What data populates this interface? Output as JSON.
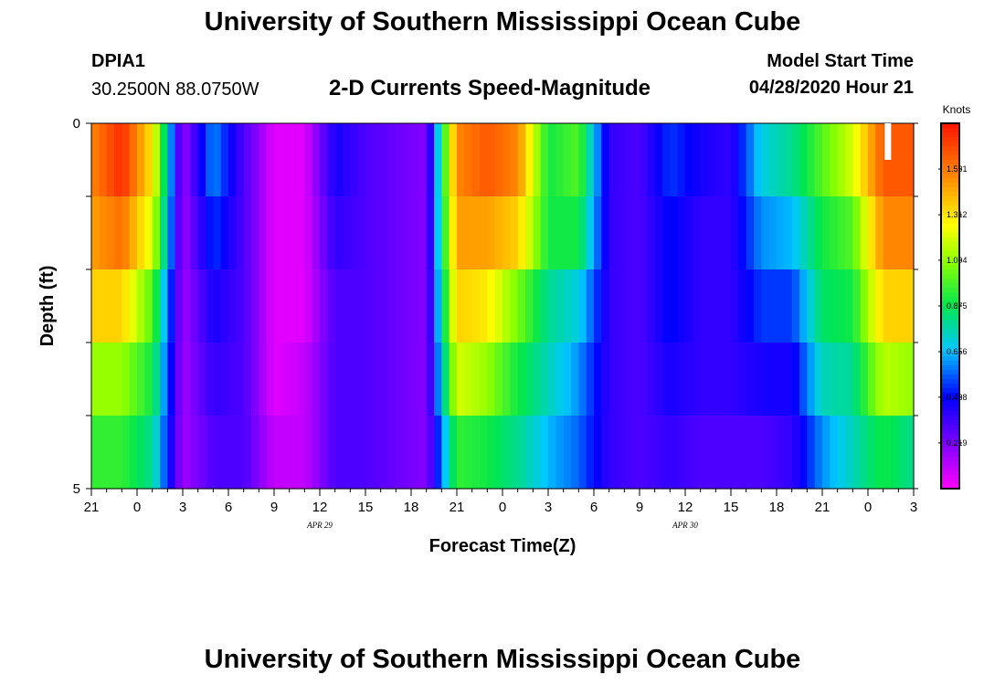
{
  "header": {
    "title": "University of Southern Mississippi Ocean Cube",
    "station_id": "DPIA1",
    "station_coords": "30.2500N 88.0750W",
    "chart_subtitle": "2-D Currents Speed-Magnitude",
    "model_start_label": "Model Start Time",
    "model_start_value": "04/28/2020 Hour 21"
  },
  "footer": {
    "title": "University of Southern Mississippi Ocean Cube"
  },
  "chart_data": {
    "type": "heatmap",
    "title": "2-D Currents Speed-Magnitude",
    "xlabel": "Forecast Time(Z)",
    "ylabel": "Depth (ft)",
    "x_unit": "hours since model start (04/28/2020 21Z)",
    "xlim": [
      0,
      54
    ],
    "ylim": [
      0,
      5
    ],
    "y_inverted": true,
    "y_tick_labels": [
      "0",
      "5"
    ],
    "x_tick_labels": [
      "21",
      "0",
      "3",
      "6",
      "9",
      "12",
      "15",
      "18",
      "21",
      "0",
      "3",
      "6",
      "9",
      "12",
      "15",
      "18",
      "21",
      "0",
      "3"
    ],
    "date_labels": [
      {
        "text": "APR  29",
        "hour": 15
      },
      {
        "text": "APR  30",
        "hour": 39
      }
    ],
    "colorbar": {
      "title": "Knots",
      "ticks": [
        "1.531",
        "1.312",
        "1.094",
        "0.875",
        "0.656",
        "0.438",
        "0.219"
      ],
      "range": [
        0,
        1.75
      ]
    },
    "depth_layers": 5,
    "time_step_hours": 0.5,
    "key_times": [
      0,
      2,
      4,
      6,
      8,
      10,
      12,
      14,
      16,
      18,
      20,
      22,
      24,
      26,
      28,
      30,
      32,
      34,
      36,
      38,
      40,
      42,
      44,
      46,
      48,
      50,
      52,
      54
    ],
    "speed_profiles": [
      [
        1.5,
        1.7,
        1.3,
        0.15,
        0.6,
        0.3,
        0.05,
        0.05,
        0.4,
        0.3,
        0.25,
        0.2,
        1.5,
        1.6,
        1.5,
        0.9,
        1.0,
        0.35,
        0.3,
        0.5,
        0.4,
        0.35,
        0.7,
        0.8,
        1.0,
        1.2,
        1.6,
        1.6
      ],
      [
        1.45,
        1.55,
        1.2,
        0.15,
        0.5,
        0.3,
        0.05,
        0.05,
        0.35,
        0.3,
        0.25,
        0.2,
        1.45,
        1.45,
        1.35,
        0.9,
        0.9,
        0.35,
        0.3,
        0.45,
        0.35,
        0.35,
        0.6,
        0.65,
        0.9,
        1.0,
        1.5,
        1.5
      ],
      [
        1.35,
        1.35,
        1.0,
        0.15,
        0.4,
        0.3,
        0.05,
        0.05,
        0.3,
        0.3,
        0.25,
        0.2,
        1.35,
        1.3,
        1.05,
        0.8,
        0.7,
        0.35,
        0.3,
        0.45,
        0.35,
        0.35,
        0.5,
        0.5,
        0.85,
        0.9,
        1.35,
        1.35
      ],
      [
        1.1,
        1.1,
        0.9,
        0.15,
        0.35,
        0.3,
        0.05,
        0.1,
        0.3,
        0.3,
        0.25,
        0.2,
        1.2,
        1.1,
        0.9,
        0.75,
        0.6,
        0.35,
        0.3,
        0.4,
        0.35,
        0.35,
        0.4,
        0.4,
        0.75,
        0.8,
        1.15,
        1.1
      ],
      [
        0.95,
        0.95,
        0.8,
        0.15,
        0.3,
        0.3,
        0.1,
        0.1,
        0.3,
        0.3,
        0.25,
        0.2,
        0.95,
        0.9,
        0.8,
        0.65,
        0.55,
        0.35,
        0.3,
        0.35,
        0.3,
        0.3,
        0.3,
        0.35,
        0.6,
        0.75,
        0.9,
        0.8
      ]
    ]
  }
}
